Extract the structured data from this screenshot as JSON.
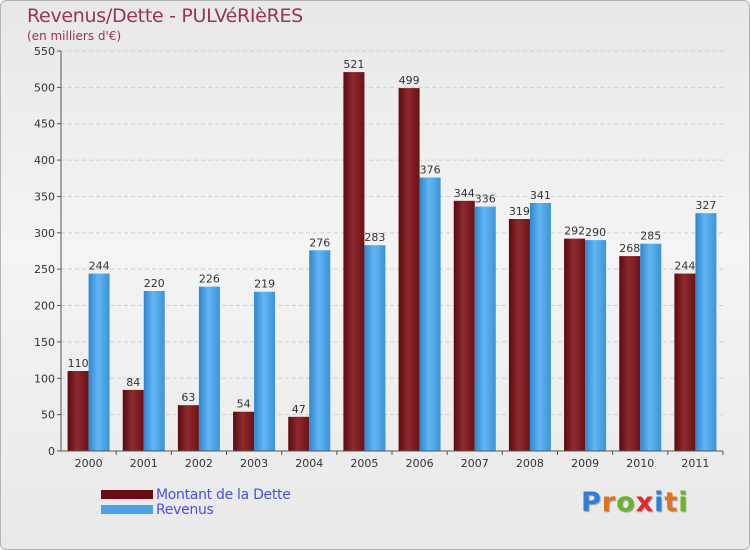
{
  "header": {
    "title": "Revenus/Dette - PULVéRIèRES",
    "subtitle": "(en milliers d'€)"
  },
  "legend": {
    "debt_label": "Montant de la Dette",
    "revenue_label": "Revenus"
  },
  "logo": {
    "text": "Proxiti",
    "letters": [
      "P",
      "r",
      "o",
      "x",
      "i",
      "t",
      "i"
    ],
    "colors": [
      "#2f7fd6",
      "#e0731c",
      "#6ab42d",
      "#e02a2a",
      "#2f7fd6",
      "#e0731c",
      "#6ab42d"
    ]
  },
  "chart_data": {
    "type": "bar",
    "title": "Revenus/Dette - PULVéRIèRES",
    "ylabel": "(en milliers d'€)",
    "xlabel": "",
    "categories": [
      "2000",
      "2001",
      "2002",
      "2003",
      "2004",
      "2005",
      "2006",
      "2007",
      "2008",
      "2009",
      "2010",
      "2011"
    ],
    "series": [
      {
        "name": "Montant de la Dette",
        "color": "#7a1a1e",
        "values": [
          110,
          84,
          63,
          54,
          47,
          521,
          499,
          344,
          319,
          292,
          268,
          244
        ]
      },
      {
        "name": "Revenus",
        "color": "#4aa3e6",
        "values": [
          244,
          220,
          226,
          219,
          276,
          283,
          376,
          336,
          341,
          290,
          285,
          327
        ]
      }
    ],
    "ylim": [
      0,
      550
    ],
    "yticks": [
      0,
      50,
      100,
      150,
      200,
      250,
      300,
      350,
      400,
      450,
      500,
      550
    ],
    "grid": true,
    "legend_position": "bottom-left"
  }
}
